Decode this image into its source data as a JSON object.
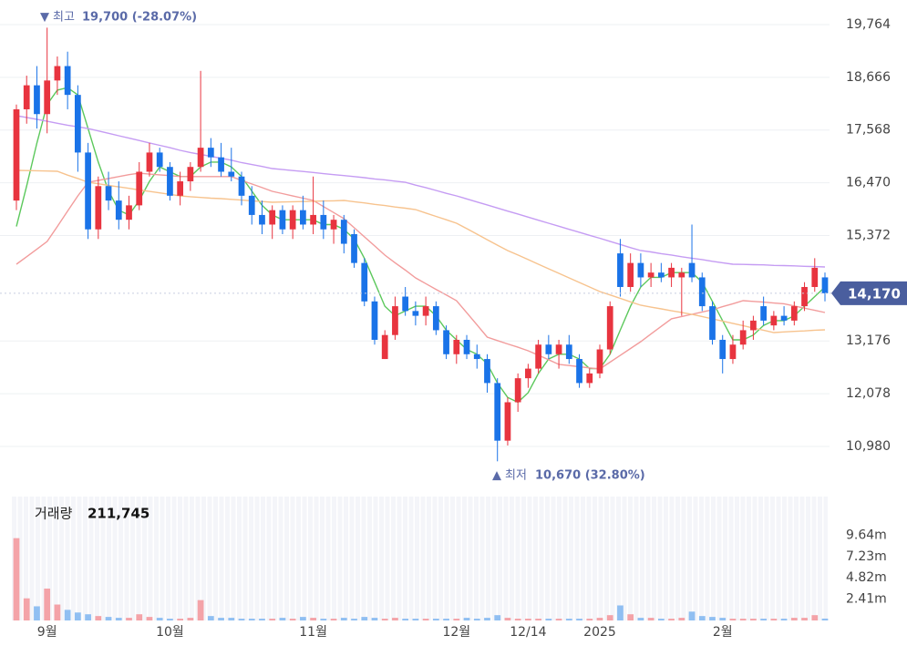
{
  "chart_data": {
    "type": "candlestick",
    "up_color": "#e8343f",
    "down_color": "#1a73e8",
    "volume_up_color": "#f4a3a8",
    "volume_down_color": "#90bff2",
    "ylim": [
      10126,
      20276
    ],
    "yticks": [
      {
        "value": 19764,
        "label": "19,764"
      },
      {
        "value": 18666,
        "label": "18,666"
      },
      {
        "value": 17568,
        "label": "17,568"
      },
      {
        "value": 16470,
        "label": "16,470"
      },
      {
        "value": 15372,
        "label": "15,372"
      },
      {
        "value": 13176,
        "label": "13,176"
      },
      {
        "value": 12078,
        "label": "12,078"
      },
      {
        "value": 10980,
        "label": "10,980"
      }
    ],
    "grid": true,
    "categories": [
      null,
      null,
      null,
      "9월",
      null,
      null,
      null,
      null,
      null,
      null,
      null,
      null,
      null,
      null,
      null,
      "10월",
      null,
      null,
      null,
      null,
      null,
      null,
      null,
      null,
      null,
      null,
      null,
      null,
      null,
      "11월",
      null,
      null,
      null,
      null,
      null,
      null,
      null,
      null,
      null,
      null,
      null,
      null,
      null,
      "12월",
      null,
      null,
      null,
      null,
      null,
      null,
      "12/14",
      null,
      null,
      null,
      null,
      null,
      null,
      "2025",
      null,
      null,
      null,
      null,
      null,
      null,
      null,
      null,
      null,
      null,
      null,
      "2월",
      null,
      null,
      null,
      null,
      null,
      null,
      null,
      null,
      null,
      null
    ],
    "candles": [
      [
        16100,
        18100,
        15900,
        18000
      ],
      [
        18000,
        18700,
        17700,
        18500
      ],
      [
        18500,
        18900,
        17600,
        17900
      ],
      [
        17900,
        19700,
        17500,
        18600
      ],
      [
        18600,
        19100,
        18300,
        18900
      ],
      [
        18900,
        19200,
        18000,
        18300
      ],
      [
        18300,
        18500,
        16700,
        17100
      ],
      [
        17100,
        17300,
        15300,
        15500
      ],
      [
        15500,
        16600,
        15300,
        16400
      ],
      [
        16400,
        16700,
        15900,
        16100
      ],
      [
        16100,
        16500,
        15500,
        15700
      ],
      [
        15700,
        16200,
        15500,
        16000
      ],
      [
        16000,
        16900,
        15900,
        16700
      ],
      [
        16700,
        17300,
        16600,
        17100
      ],
      [
        17100,
        17200,
        16700,
        16800
      ],
      [
        16800,
        16900,
        16100,
        16200
      ],
      [
        16200,
        16700,
        16000,
        16500
      ],
      [
        16500,
        16900,
        16300,
        16800
      ],
      [
        16800,
        18800,
        16700,
        17200
      ],
      [
        17200,
        17400,
        16800,
        17000
      ],
      [
        17000,
        17300,
        16600,
        16700
      ],
      [
        16700,
        17200,
        16500,
        16600
      ],
      [
        16600,
        16700,
        16000,
        16200
      ],
      [
        16200,
        16400,
        15600,
        15800
      ],
      [
        15800,
        16100,
        15400,
        15600
      ],
      [
        15600,
        16000,
        15300,
        15900
      ],
      [
        15900,
        16000,
        15400,
        15500
      ],
      [
        15500,
        16000,
        15300,
        15900
      ],
      [
        15900,
        16200,
        15500,
        15600
      ],
      [
        15600,
        16600,
        15400,
        15800
      ],
      [
        15800,
        16100,
        15300,
        15500
      ],
      [
        15500,
        15800,
        15200,
        15700
      ],
      [
        15700,
        15800,
        15000,
        15200
      ],
      [
        15400,
        15500,
        14700,
        14800
      ],
      [
        14800,
        14900,
        13900,
        14000
      ],
      [
        14000,
        14100,
        13100,
        13200
      ],
      [
        12800,
        13400,
        12800,
        13300
      ],
      [
        13300,
        14100,
        13200,
        13900
      ],
      [
        14100,
        14300,
        13700,
        13800
      ],
      [
        13800,
        14000,
        13500,
        13700
      ],
      [
        13700,
        14100,
        13500,
        13900
      ],
      [
        13900,
        14000,
        13300,
        13400
      ],
      [
        13400,
        13500,
        12800,
        12900
      ],
      [
        12900,
        13300,
        12700,
        13200
      ],
      [
        13200,
        13300,
        12800,
        12900
      ],
      [
        12900,
        13100,
        12600,
        12800
      ],
      [
        12800,
        12900,
        12100,
        12300
      ],
      [
        12300,
        12400,
        10670,
        11100
      ],
      [
        11100,
        12000,
        11000,
        11900
      ],
      [
        11900,
        12500,
        11700,
        12400
      ],
      [
        12400,
        12700,
        12200,
        12600
      ],
      [
        12600,
        13200,
        12500,
        13100
      ],
      [
        13100,
        13300,
        12800,
        12900
      ],
      [
        12900,
        13200,
        12600,
        13100
      ],
      [
        13100,
        13300,
        12700,
        12800
      ],
      [
        12800,
        12900,
        12200,
        12300
      ],
      [
        12300,
        12600,
        12200,
        12500
      ],
      [
        12500,
        13100,
        12400,
        13000
      ],
      [
        13000,
        14000,
        12900,
        13900
      ],
      [
        15000,
        15300,
        14100,
        14300
      ],
      [
        14300,
        15000,
        14200,
        14800
      ],
      [
        14800,
        15000,
        14300,
        14500
      ],
      [
        14500,
        14800,
        14300,
        14600
      ],
      [
        14600,
        14800,
        14400,
        14500
      ],
      [
        14500,
        14800,
        14300,
        14700
      ],
      [
        14500,
        14700,
        13700,
        14600
      ],
      [
        14800,
        15600,
        14400,
        14500
      ],
      [
        14500,
        14600,
        13800,
        13900
      ],
      [
        13900,
        14000,
        13100,
        13200
      ],
      [
        13200,
        13300,
        12500,
        12800
      ],
      [
        12800,
        13300,
        12700,
        13100
      ],
      [
        13100,
        13600,
        13000,
        13400
      ],
      [
        13400,
        13700,
        13200,
        13600
      ],
      [
        13900,
        14100,
        13500,
        13600
      ],
      [
        13500,
        13800,
        13400,
        13700
      ],
      [
        13700,
        13900,
        13500,
        13600
      ],
      [
        13600,
        14000,
        13500,
        13900
      ],
      [
        13900,
        14400,
        13800,
        14300
      ],
      [
        14300,
        14900,
        14200,
        14700
      ],
      [
        14500,
        14600,
        14000,
        14170
      ]
    ],
    "series": [
      {
        "color": "#5cc85c",
        "values": [
          15560,
          16400,
          17300,
          18100,
          18400,
          18450,
          18300,
          17600,
          16900,
          16300,
          15900,
          15800,
          16100,
          16500,
          16800,
          16700,
          16600,
          16600,
          16800,
          16900,
          16900,
          16800,
          16600,
          16300,
          16000,
          15800,
          15700,
          15700,
          15700,
          15700,
          15600,
          15600,
          15500,
          15300,
          14900,
          14400,
          13900,
          13700,
          13800,
          13900,
          13900,
          13700,
          13400,
          13200,
          13000,
          12900,
          12700,
          12300,
          12000,
          11900,
          12100,
          12500,
          12800,
          12900,
          12900,
          12800,
          12600,
          12600,
          12900,
          13400,
          13900,
          14300,
          14500,
          14500,
          14600,
          14600,
          14600,
          14400,
          14000,
          13600,
          13200,
          13200,
          13300,
          13500,
          13600,
          13600,
          13700,
          13900,
          14100,
          14300
        ]
      },
      {
        "color": "#f29c9c",
        "values": [
          14774,
          14930,
          15090,
          15248,
          15560,
          15880,
          16197,
          16480,
          16520,
          16560,
          16600,
          16640,
          16670,
          16650,
          16635,
          16620,
          16600,
          16600,
          16600,
          16600,
          16600,
          16600,
          16520,
          16445,
          16370,
          16292,
          16245,
          16195,
          16150,
          16102,
          15975,
          15850,
          15723,
          15535,
          15345,
          15155,
          14964,
          14805,
          14650,
          14490,
          14370,
          14250,
          14135,
          14016,
          13765,
          13510,
          13257,
          13185,
          13115,
          13045,
          12972,
          12880,
          12785,
          12688,
          12665,
          12640,
          12615,
          12593,
          12735,
          12875,
          13020,
          13162,
          13320,
          13480,
          13637,
          13685,
          13730,
          13780,
          13826,
          13890,
          13950,
          14016,
          14000,
          13985,
          13965,
          13950,
          13905,
          13860,
          13815,
          13769
        ]
      },
      {
        "color": "#f7c38e",
        "values": [
          16729,
          16725,
          16720,
          16715,
          16710,
          16630,
          16560,
          16480,
          16450,
          16415,
          16385,
          16355,
          16320,
          16290,
          16260,
          16230,
          16197,
          16180,
          16165,
          16150,
          16140,
          16125,
          16110,
          16095,
          16080,
          16065,
          16070,
          16075,
          16080,
          16085,
          16090,
          16095,
          16102,
          16075,
          16050,
          16020,
          15995,
          15965,
          15940,
          15913,
          15840,
          15770,
          15700,
          15628,
          15515,
          15400,
          15285,
          15170,
          15059,
          14965,
          14870,
          14775,
          14680,
          14585,
          14490,
          14395,
          14300,
          14205,
          14135,
          14065,
          13990,
          13921,
          13880,
          13845,
          13805,
          13770,
          13731,
          13685,
          13635,
          13590,
          13542,
          13495,
          13445,
          13400,
          13352,
          13365,
          13375,
          13385,
          13400,
          13409
        ]
      },
      {
        "color": "#c59cf3",
        "values": [
          17867,
          17830,
          17790,
          17750,
          17710,
          17670,
          17635,
          17600,
          17550,
          17500,
          17450,
          17400,
          17350,
          17300,
          17250,
          17200,
          17146,
          17100,
          17060,
          17020,
          16980,
          16940,
          16890,
          16850,
          16810,
          16766,
          16745,
          16725,
          16705,
          16685,
          16660,
          16640,
          16620,
          16600,
          16577,
          16550,
          16530,
          16505,
          16480,
          16420,
          16370,
          16310,
          16250,
          16197,
          16135,
          16070,
          16010,
          15945,
          15880,
          15820,
          15755,
          15690,
          15628,
          15565,
          15500,
          15440,
          15375,
          15315,
          15250,
          15185,
          15120,
          15059,
          15030,
          14995,
          14965,
          14930,
          14900,
          14870,
          14835,
          14805,
          14774,
          14770,
          14765,
          14760,
          14750,
          14745,
          14740,
          14730,
          14725,
          14717
        ]
      }
    ],
    "volumes": [
      9300000,
      2500000,
      1600000,
      3600000,
      1800000,
      1200000,
      900000,
      700000,
      500000,
      400000,
      300000,
      300000,
      700000,
      400000,
      300000,
      200000,
      200000,
      300000,
      2300000,
      500000,
      300000,
      300000,
      200000,
      200000,
      200000,
      200000,
      300000,
      200000,
      400000,
      300000,
      200000,
      200000,
      300000,
      200000,
      400000,
      300000,
      200000,
      300000,
      200000,
      200000,
      200000,
      200000,
      200000,
      200000,
      300000,
      200000,
      300000,
      600000,
      300000,
      200000,
      200000,
      200000,
      200000,
      200000,
      200000,
      200000,
      200000,
      300000,
      600000,
      1700000,
      700000,
      300000,
      300000,
      200000,
      200000,
      300000,
      1000000,
      500000,
      400000,
      300000,
      200000,
      200000,
      200000,
      200000,
      200000,
      200000,
      300000,
      300000,
      600000,
      211745
    ],
    "volume_ylim": [
      0,
      14000000
    ],
    "volume_yticks": [
      {
        "value": 9640000,
        "label": "9.64m"
      },
      {
        "value": 7230000,
        "label": "7.23m"
      },
      {
        "value": 4820000,
        "label": "4.82m"
      },
      {
        "value": 2410000,
        "label": "2.41m"
      }
    ],
    "volume_title": "거래량",
    "last_volume": {
      "value": 211745,
      "label": "211,745"
    },
    "last_price": {
      "value": 14170,
      "label": "14,170"
    },
    "high_annotation": {
      "label": "최고",
      "text": "19,700 (-28.07%)"
    },
    "low_annotation": {
      "label": "최저",
      "text": "10,670 (32.80%)"
    }
  }
}
